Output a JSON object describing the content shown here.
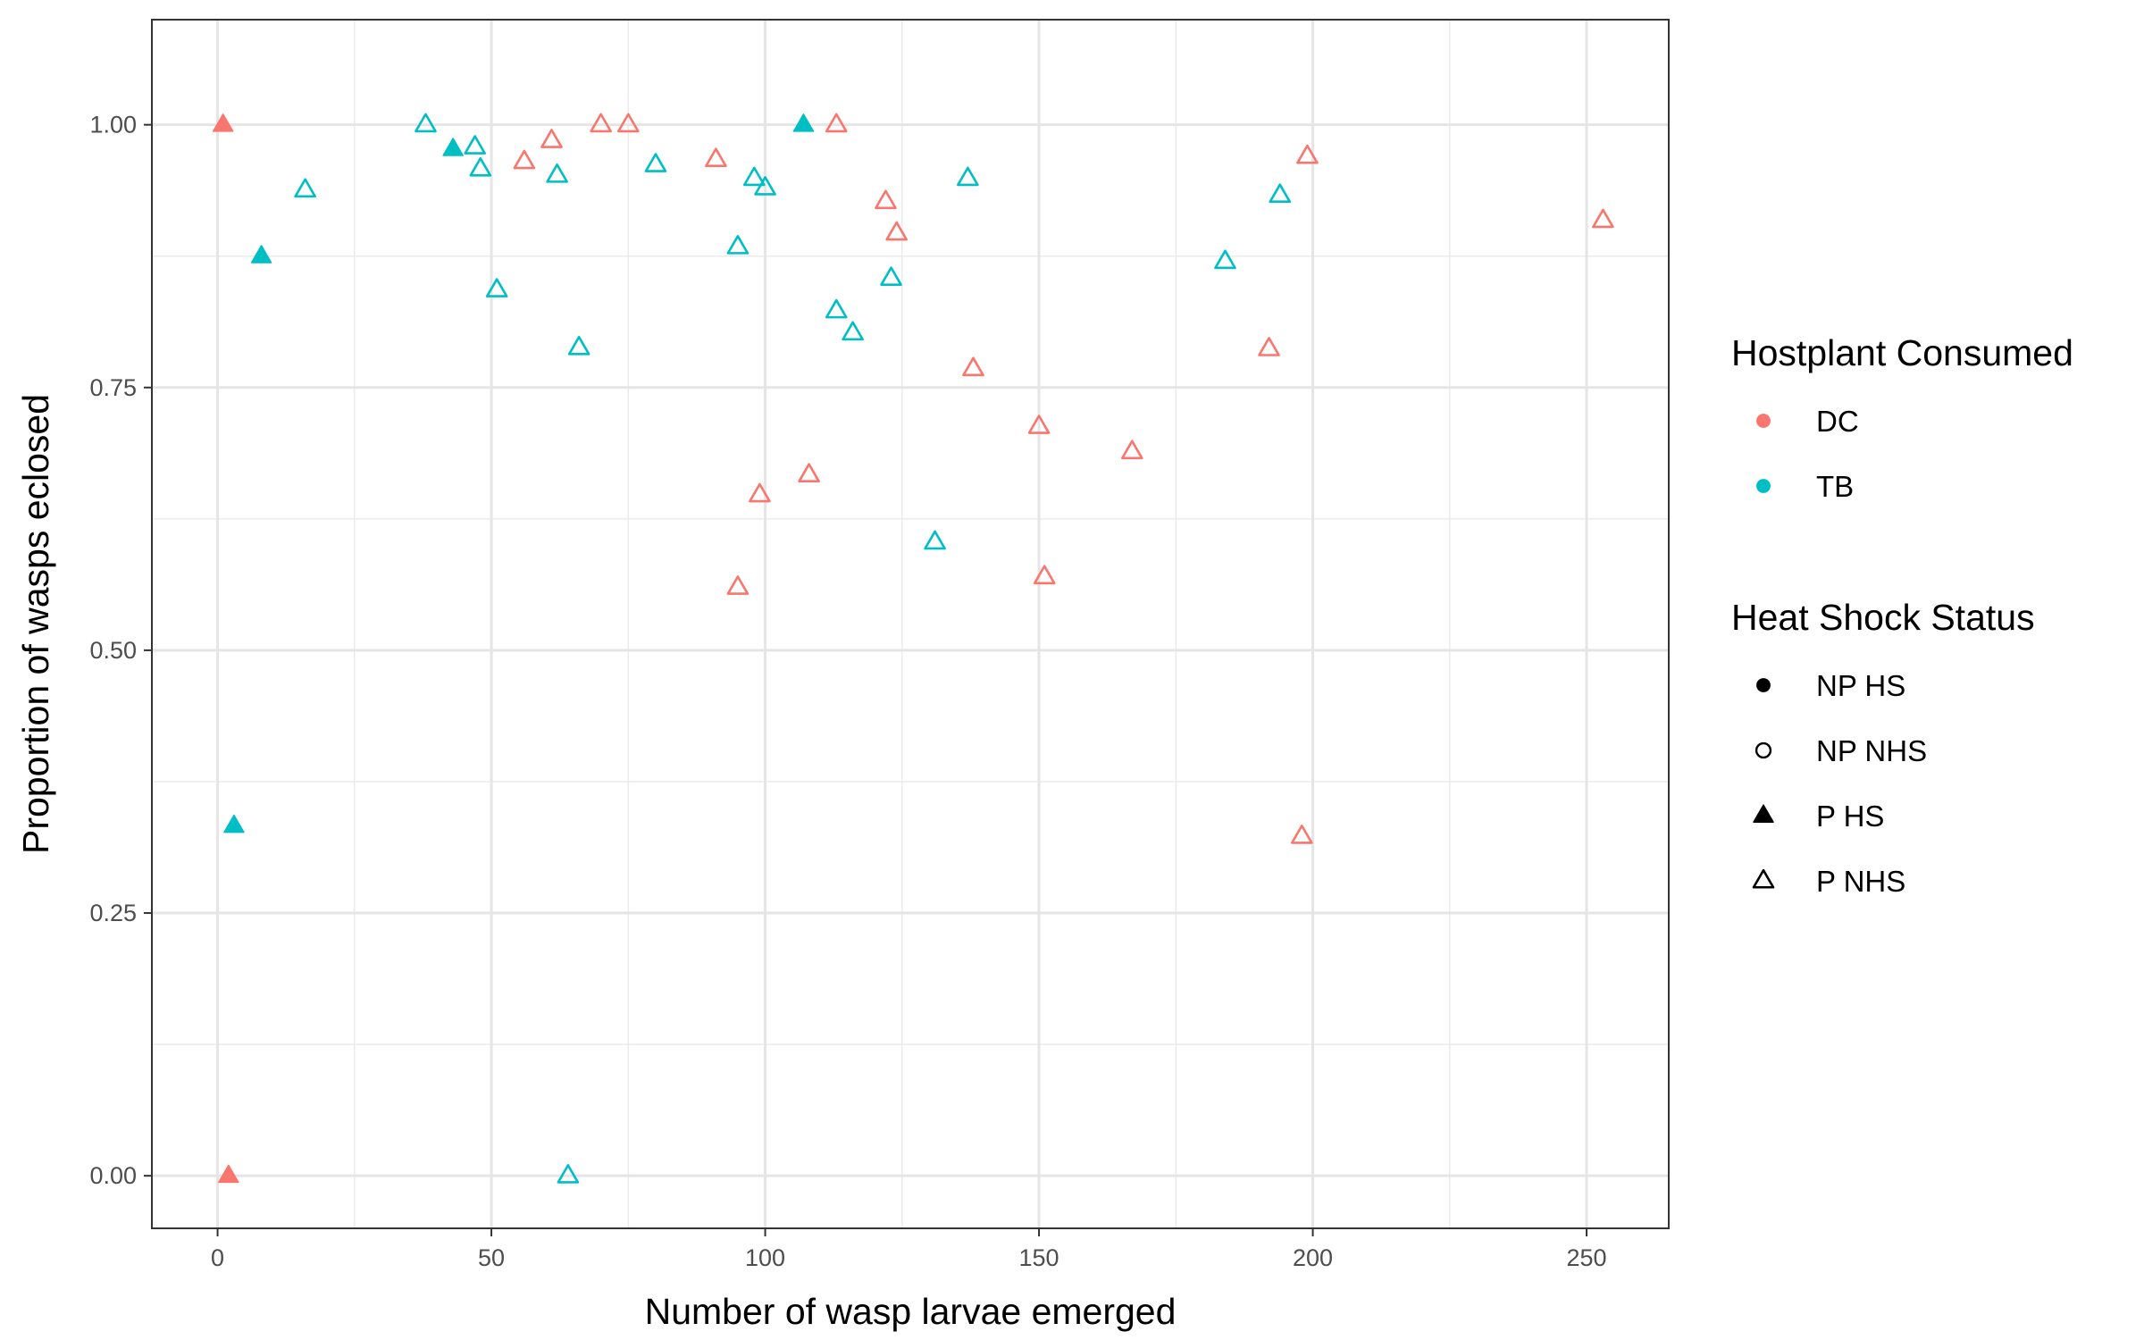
{
  "chart_data": {
    "type": "scatter",
    "xlabel": "Number of wasp larvae emerged",
    "ylabel": "Proportion of wasps eclosed",
    "xlim": [
      -12,
      265
    ],
    "ylim": [
      -0.05,
      1.1
    ],
    "x_ticks": [
      0,
      50,
      100,
      150,
      200,
      250
    ],
    "x_tick_labels": [
      "0",
      "50",
      "100",
      "150",
      "200",
      "250"
    ],
    "y_ticks": [
      0,
      0.25,
      0.5,
      0.75,
      1.0
    ],
    "y_tick_labels": [
      "0.00",
      "0.25",
      "0.50",
      "0.75",
      "1.00"
    ],
    "grid": true,
    "legend_position": "right",
    "legends": [
      {
        "title": "Hostplant Consumed",
        "entries": [
          {
            "label": "DC",
            "key": "DC",
            "color": "#F8766D",
            "shape": "circle-filled"
          },
          {
            "label": "TB",
            "key": "TB",
            "color": "#00BFC4",
            "shape": "circle-filled"
          }
        ]
      },
      {
        "title": "Heat Shock Status",
        "entries": [
          {
            "label": "NP HS",
            "key": "NP HS",
            "color": "#000000",
            "shape": "circle-filled"
          },
          {
            "label": "NP NHS",
            "key": "NP NHS",
            "color": "#000000",
            "shape": "circle-open"
          },
          {
            "label": "P HS",
            "key": "P HS",
            "color": "#000000",
            "shape": "triangle-filled"
          },
          {
            "label": "P NHS",
            "key": "P NHS",
            "color": "#000000",
            "shape": "triangle-open"
          }
        ]
      }
    ],
    "series": [
      {
        "name": "DC",
        "color": "#F8766D",
        "points": [
          {
            "x": 1,
            "y": 1.0,
            "status": "P HS"
          },
          {
            "x": 2,
            "y": 0.0,
            "status": "P HS"
          },
          {
            "x": 56,
            "y": 0.965,
            "status": "P NHS"
          },
          {
            "x": 61,
            "y": 0.985,
            "status": "P NHS"
          },
          {
            "x": 70,
            "y": 1.0,
            "status": "P NHS"
          },
          {
            "x": 75,
            "y": 1.0,
            "status": "P NHS"
          },
          {
            "x": 91,
            "y": 0.967,
            "status": "P NHS"
          },
          {
            "x": 95,
            "y": 0.56,
            "status": "P NHS"
          },
          {
            "x": 99,
            "y": 0.648,
            "status": "P NHS"
          },
          {
            "x": 108,
            "y": 0.667,
            "status": "P NHS"
          },
          {
            "x": 113,
            "y": 1.0,
            "status": "P NHS"
          },
          {
            "x": 122,
            "y": 0.927,
            "status": "P NHS"
          },
          {
            "x": 124,
            "y": 0.897,
            "status": "P NHS"
          },
          {
            "x": 138,
            "y": 0.768,
            "status": "P NHS"
          },
          {
            "x": 150,
            "y": 0.713,
            "status": "P NHS"
          },
          {
            "x": 151,
            "y": 0.57,
            "status": "P NHS"
          },
          {
            "x": 167,
            "y": 0.689,
            "status": "P NHS"
          },
          {
            "x": 192,
            "y": 0.787,
            "status": "P NHS"
          },
          {
            "x": 198,
            "y": 0.323,
            "status": "P NHS"
          },
          {
            "x": 199,
            "y": 0.97,
            "status": "P NHS"
          },
          {
            "x": 253,
            "y": 0.909,
            "status": "P NHS"
          }
        ]
      },
      {
        "name": "TB",
        "color": "#00BFC4",
        "points": [
          {
            "x": 3,
            "y": 0.333,
            "status": "P HS"
          },
          {
            "x": 8,
            "y": 0.875,
            "status": "P HS"
          },
          {
            "x": 16,
            "y": 0.938,
            "status": "P NHS"
          },
          {
            "x": 38,
            "y": 1.0,
            "status": "P NHS"
          },
          {
            "x": 43,
            "y": 0.977,
            "status": "P HS"
          },
          {
            "x": 47,
            "y": 0.979,
            "status": "P NHS"
          },
          {
            "x": 48,
            "y": 0.958,
            "status": "P NHS"
          },
          {
            "x": 51,
            "y": 0.843,
            "status": "P NHS"
          },
          {
            "x": 62,
            "y": 0.952,
            "status": "P NHS"
          },
          {
            "x": 64,
            "y": 0.0,
            "status": "P NHS"
          },
          {
            "x": 66,
            "y": 0.788,
            "status": "P NHS"
          },
          {
            "x": 80,
            "y": 0.962,
            "status": "P NHS"
          },
          {
            "x": 95,
            "y": 0.884,
            "status": "P NHS"
          },
          {
            "x": 98,
            "y": 0.949,
            "status": "P NHS"
          },
          {
            "x": 100,
            "y": 0.94,
            "status": "P NHS"
          },
          {
            "x": 107,
            "y": 1.0,
            "status": "P HS"
          },
          {
            "x": 113,
            "y": 0.823,
            "status": "P NHS"
          },
          {
            "x": 116,
            "y": 0.802,
            "status": "P NHS"
          },
          {
            "x": 123,
            "y": 0.854,
            "status": "P NHS"
          },
          {
            "x": 131,
            "y": 0.603,
            "status": "P NHS"
          },
          {
            "x": 137,
            "y": 0.949,
            "status": "P NHS"
          },
          {
            "x": 184,
            "y": 0.87,
            "status": "P NHS"
          },
          {
            "x": 194,
            "y": 0.933,
            "status": "P NHS"
          }
        ]
      }
    ]
  }
}
